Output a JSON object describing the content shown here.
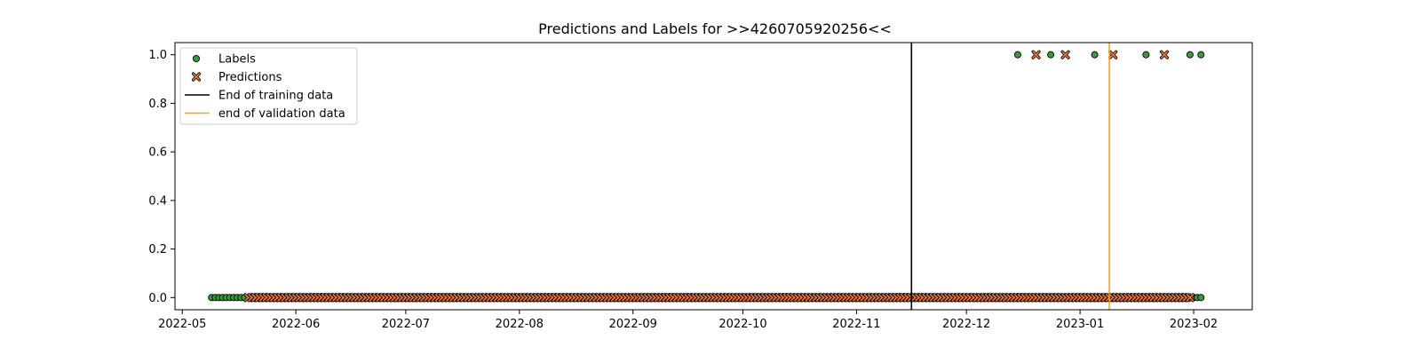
{
  "chart_data": {
    "type": "scatter",
    "title": "Predictions and Labels for >>4260705920256<<",
    "xlabel": "",
    "ylabel": "",
    "x_axis": "date",
    "xlim": [
      "2022-04-29",
      "2023-02-17"
    ],
    "ylim": [
      -0.05,
      1.05
    ],
    "x_ticks": [
      "2022-05",
      "2022-06",
      "2022-07",
      "2022-08",
      "2022-09",
      "2022-10",
      "2022-11",
      "2022-12",
      "2023-01",
      "2023-02"
    ],
    "y_ticks": [
      "0.0",
      "0.2",
      "0.4",
      "0.6",
      "0.8",
      "1.0"
    ],
    "grid": false,
    "legend": {
      "position": "top-left",
      "entries": [
        {
          "label": "Labels",
          "kind": "marker-circle",
          "color": "#3a9a3a"
        },
        {
          "label": "Predictions",
          "kind": "marker-x",
          "color": "#e8743b"
        },
        {
          "label": "End of training data",
          "kind": "line",
          "color": "#000000"
        },
        {
          "label": "end of validation data",
          "kind": "line",
          "color": "#ffa500"
        }
      ]
    },
    "series": [
      {
        "name": "Labels",
        "marker": "circle",
        "color": "#3a9a3a",
        "zero_range": [
          "2022-05-09",
          "2022-05-18"
        ],
        "zero_dates": [
          "2023-02-01",
          "2023-02-02",
          "2023-02-03"
        ],
        "one_dates": [
          "2022-12-15",
          "2022-12-24",
          "2023-01-05",
          "2023-01-19",
          "2023-01-31",
          "2023-02-03"
        ]
      },
      {
        "name": "Predictions",
        "marker": "x",
        "color": "#e8743b",
        "zero_range": [
          "2022-05-19",
          "2023-01-31"
        ],
        "one_dates": [
          "2022-12-20",
          "2022-12-28",
          "2023-01-10",
          "2023-01-24"
        ]
      }
    ],
    "vlines": [
      {
        "name": "End of training data",
        "date": "2022-11-16",
        "color": "#000000"
      },
      {
        "name": "end of validation data",
        "date": "2023-01-09",
        "color": "#ffa500"
      }
    ]
  }
}
